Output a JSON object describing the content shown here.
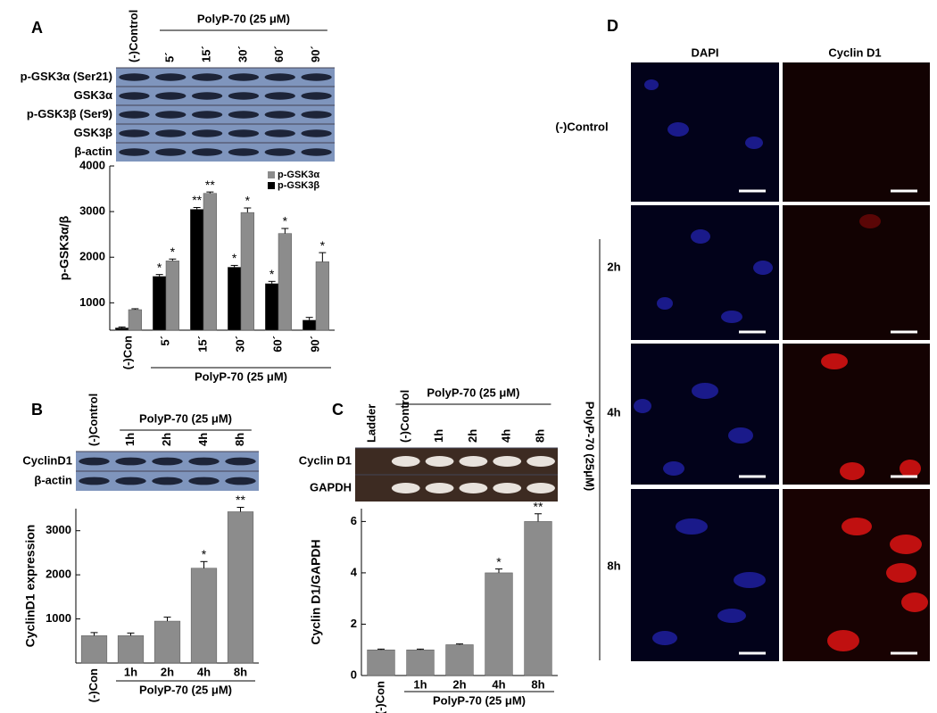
{
  "panels": [
    {
      "letter": "A",
      "group_label": "PolyP-70 (25 μM)",
      "lanes": [
        "(-)Control",
        "5´",
        "15´",
        "30´",
        "60´",
        "90´"
      ],
      "rows": [
        "p-GSK3α (Ser21)",
        "GSK3α",
        "p-GSK3β (Ser9)",
        "GSK3β",
        "β-actin"
      ]
    },
    {
      "letter": "B",
      "group_label": "PolyP-70 (25 μM)",
      "lanes": [
        "(-)Control",
        "1h",
        "2h",
        "4h",
        "8h"
      ],
      "rows": [
        "CyclinD1",
        "β-actin"
      ]
    },
    {
      "letter": "C",
      "group_label": "PolyP-70 (25 μM)",
      "lanes": [
        "Ladder",
        "(-)Control",
        "1h",
        "2h",
        "4h",
        "8h"
      ],
      "rows": [
        "Cyclin D1",
        "GAPDH"
      ]
    },
    {
      "letter": "D",
      "columns": [
        "DAPI",
        "Cyclin D1"
      ],
      "rows": [
        "(-)Control",
        "2h",
        "4h",
        "8h"
      ],
      "group_label": "PolyP-70 (25μM)"
    }
  ],
  "chart_data": [
    {
      "type": "bar",
      "y_label": "p-GSK3α/β",
      "categories": [
        "(-)Con",
        "5´",
        "15´",
        "30´",
        "60´",
        "90´"
      ],
      "group_label": "PolyP-70 (25 μM)",
      "series": [
        {
          "name": "p-GSK3β",
          "color": "#000000",
          "values": [
            450,
            1580,
            3050,
            1780,
            1420,
            620
          ],
          "errors": [
            20,
            40,
            40,
            40,
            50,
            60
          ],
          "significance": [
            null,
            "*",
            "**",
            "*",
            "*",
            null
          ]
        },
        {
          "name": "p-GSK3α",
          "color": "#8c8c8c",
          "values": [
            850,
            1920,
            3400,
            2980,
            2520,
            1900
          ],
          "errors": [
            20,
            40,
            30,
            100,
            110,
            200
          ],
          "significance": [
            null,
            "*",
            "**",
            "*",
            "*",
            "*"
          ]
        }
      ],
      "ylim": [
        400,
        4000
      ],
      "yticks": [
        1000,
        2000,
        3000,
        4000
      ],
      "legend": "upper right"
    },
    {
      "type": "bar",
      "y_label": "CyclinD1 expression",
      "categories": [
        "(-)Con",
        "1h",
        "2h",
        "4h",
        "8h"
      ],
      "group_label": "PolyP-70 (25 μM)",
      "color": "#8c8c8c",
      "values": [
        620,
        620,
        950,
        2150,
        3430
      ],
      "errors": [
        70,
        60,
        90,
        150,
        100
      ],
      "significance": [
        null,
        null,
        null,
        "*",
        "**"
      ],
      "ylim": [
        0,
        3500
      ],
      "yticks": [
        1000,
        2000,
        3000
      ]
    },
    {
      "type": "bar",
      "y_label": "Cyclin D1/GAPDH",
      "categories": [
        "(-)Con",
        "1h",
        "2h",
        "4h",
        "8h"
      ],
      "group_label": "PolyP-70 (25 μM)",
      "color": "#8c8c8c",
      "values": [
        1,
        1,
        1.2,
        4,
        6
      ],
      "errors": [
        0.03,
        0.03,
        0.03,
        0.15,
        0.3
      ],
      "significance": [
        null,
        null,
        null,
        "*",
        "**"
      ],
      "ylim": [
        0,
        6.5
      ],
      "yticks": [
        0,
        2,
        4,
        6
      ]
    }
  ]
}
